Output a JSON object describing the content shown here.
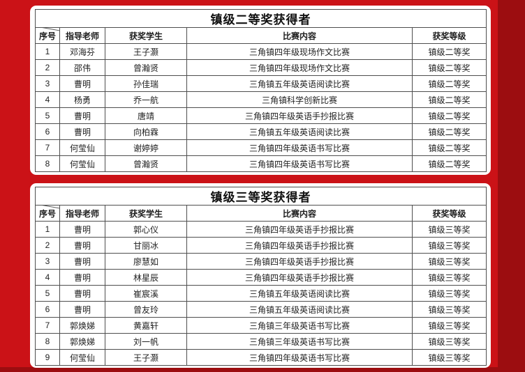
{
  "page": {
    "background_color": "#cb1217",
    "background_shade_color": "#9c0d10",
    "panel_color": "#ffffff",
    "border_color": "#4e4e4e"
  },
  "award_tables": [
    {
      "title": "镇级二等奖获得者",
      "headers": [
        "序号",
        "指导老师",
        "获奖学生",
        "比赛内容",
        "获奖等级"
      ],
      "rows": [
        [
          "1",
          "邓海芬",
          "王子灏",
          "三角镇四年级现场作文比赛",
          "镇级二等奖"
        ],
        [
          "2",
          "邵伟",
          "曾瀚贤",
          "三角镇四年级现场作文比赛",
          "镇级二等奖"
        ],
        [
          "3",
          "曹明",
          "孙佳瑞",
          "三角镇五年级英语阅读比赛",
          "镇级二等奖"
        ],
        [
          "4",
          "杨勇",
          "乔一航",
          "三角镇科学创新比赛",
          "镇级二等奖"
        ],
        [
          "5",
          "曹明",
          "唐靖",
          "三角镇四年级英语手抄报比赛",
          "镇级二等奖"
        ],
        [
          "6",
          "曹明",
          "向柏霖",
          "三角镇五年级英语阅读比赛",
          "镇级二等奖"
        ],
        [
          "7",
          "何莹仙",
          "谢婷婷",
          "三角镇四年级英语书写比赛",
          "镇级二等奖"
        ],
        [
          "8",
          "何莹仙",
          "曾瀚贤",
          "三角镇四年级英语书写比赛",
          "镇级二等奖"
        ]
      ]
    },
    {
      "title": "镇级三等奖获得者",
      "headers": [
        "序号",
        "指导老师",
        "获奖学生",
        "比赛内容",
        "获奖等级"
      ],
      "rows": [
        [
          "1",
          "曹明",
          "郭心仪",
          "三角镇四年级英语手抄报比赛",
          "镇级三等奖"
        ],
        [
          "2",
          "曹明",
          "甘丽冰",
          "三角镇四年级英语手抄报比赛",
          "镇级三等奖"
        ],
        [
          "3",
          "曹明",
          "廖慧如",
          "三角镇四年级英语手抄报比赛",
          "镇级三等奖"
        ],
        [
          "4",
          "曹明",
          "林星辰",
          "三角镇四年级英语手抄报比赛",
          "镇级三等奖"
        ],
        [
          "5",
          "曹明",
          "崔宸溪",
          "三角镇五年级英语阅读比赛",
          "镇级三等奖"
        ],
        [
          "6",
          "曹明",
          "曾友玲",
          "三角镇五年级英语阅读比赛",
          "镇级三等奖"
        ],
        [
          "7",
          "郭焕娣",
          "黄嘉轩",
          "三角镇三年级英语书写比赛",
          "镇级三等奖"
        ],
        [
          "8",
          "郭焕娣",
          "刘一帆",
          "三角镇三年级英语书写比赛",
          "镇级三等奖"
        ],
        [
          "9",
          "何莹仙",
          "王子灏",
          "三角镇四年级英语书写比赛",
          "镇级三等奖"
        ]
      ]
    }
  ]
}
